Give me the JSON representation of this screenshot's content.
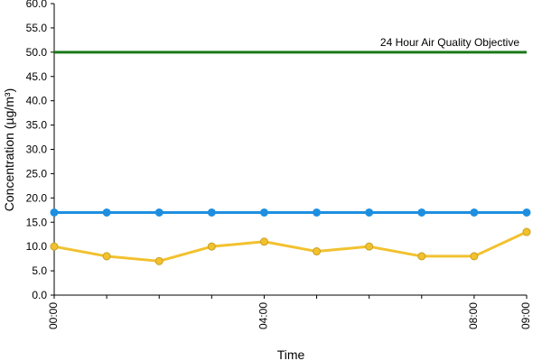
{
  "chart_data": {
    "type": "line",
    "title": "",
    "xlabel": "Time",
    "ylabel": "Concentration (µg/m³)",
    "ylim": [
      0,
      60
    ],
    "y_ticks": [
      "0.0",
      "5.0",
      "10.0",
      "15.0",
      "20.0",
      "25.0",
      "30.0",
      "35.0",
      "40.0",
      "45.0",
      "50.0",
      "55.0",
      "60.0"
    ],
    "x": [
      "00:00",
      "01:00",
      "02:00",
      "03:00",
      "04:00",
      "05:00",
      "06:00",
      "07:00",
      "08:00",
      "09:00"
    ],
    "x_tick_labels": [
      "00:00",
      "04:00",
      "08:00",
      "09:00"
    ],
    "grid": false,
    "legend": "none",
    "series": [
      {
        "color": "#1E8FE0",
        "marker": "circle",
        "values": [
          17,
          17,
          17,
          17,
          17,
          17,
          17,
          17,
          17,
          17
        ]
      },
      {
        "color": "#F2C12E",
        "marker": "circle",
        "values": [
          10,
          8,
          7,
          10,
          11,
          9,
          10,
          8,
          8,
          13
        ]
      }
    ],
    "reference_lines": [
      {
        "label": "24 Hour Air Quality Objective",
        "value": 50,
        "color": "#1A7A1A"
      }
    ]
  }
}
